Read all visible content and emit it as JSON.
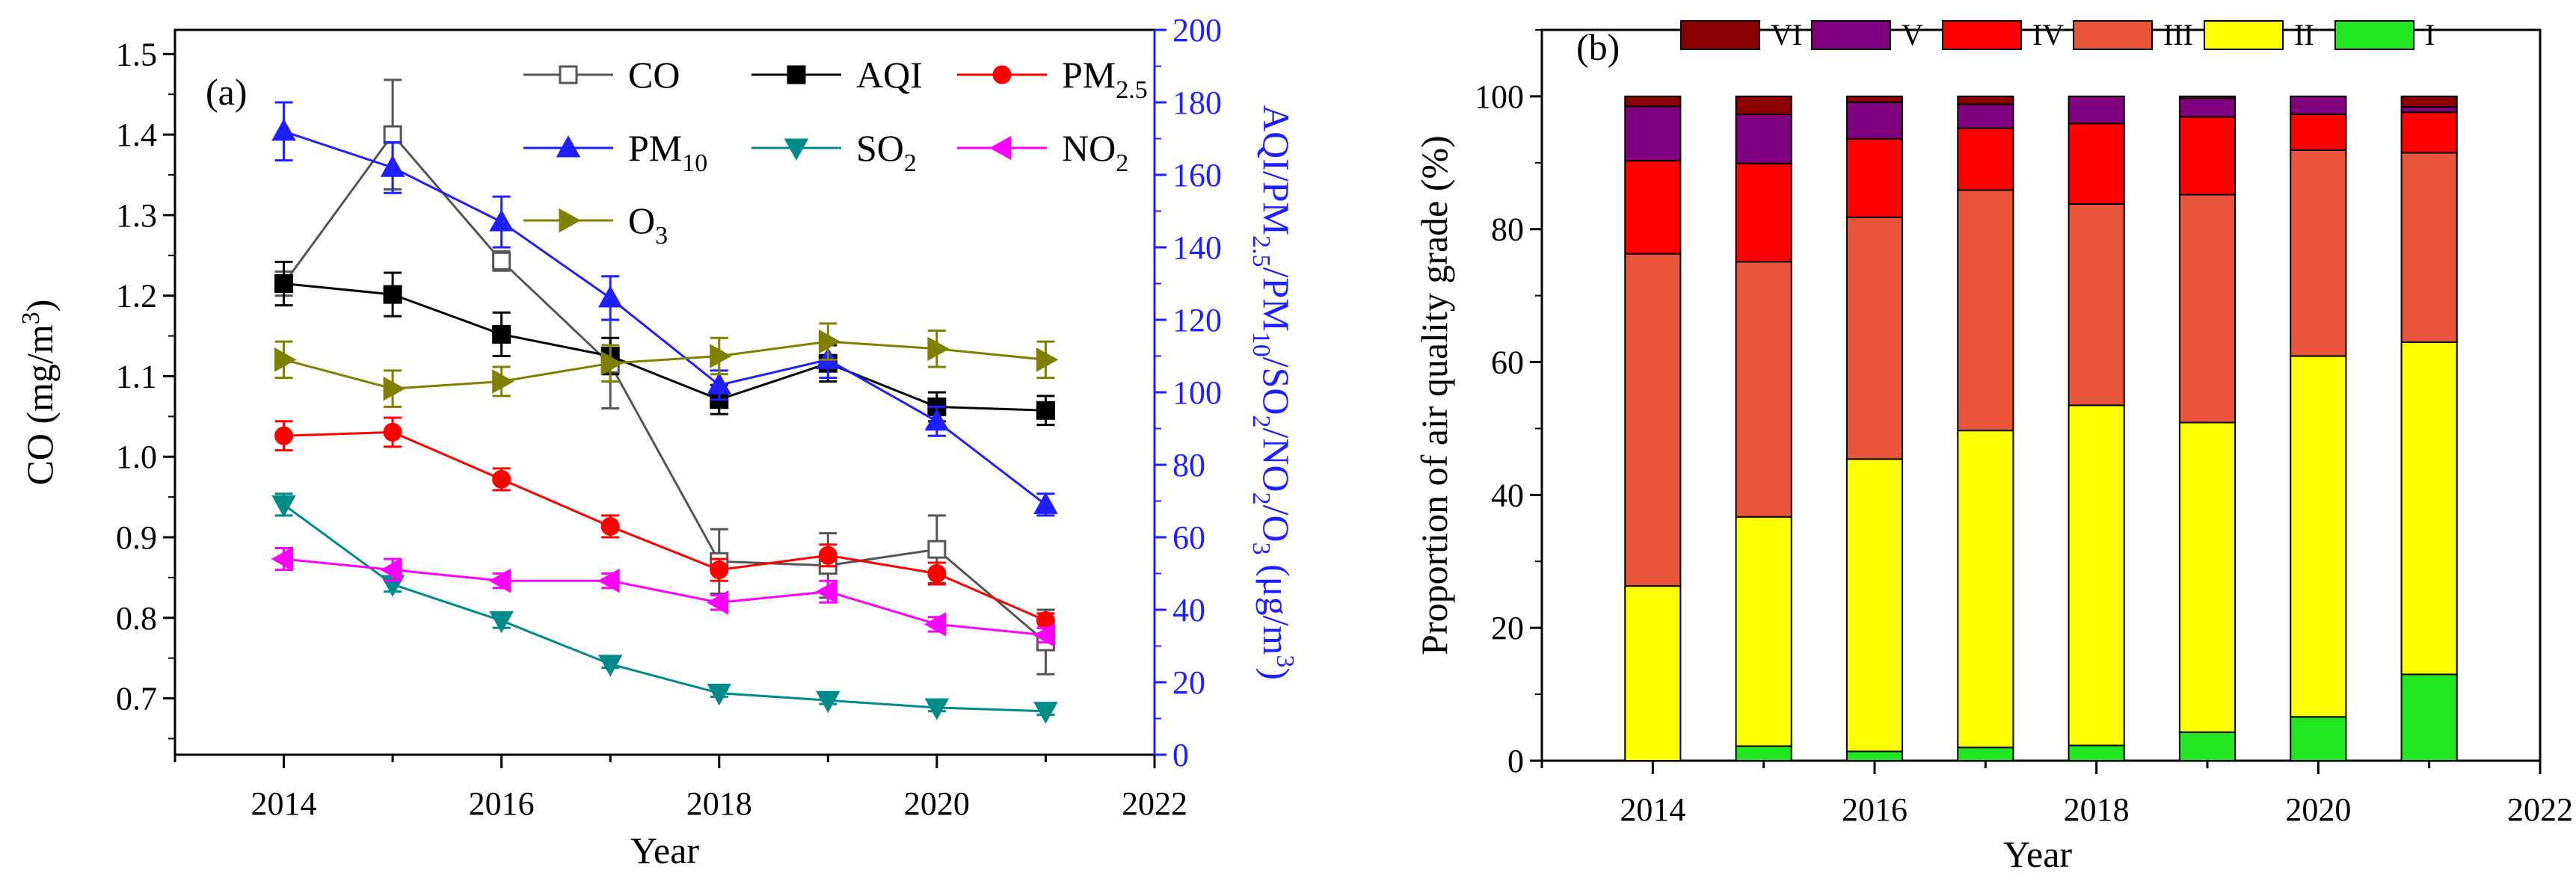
{
  "chart_data": [
    {
      "panel_label": "(a)",
      "type": "line",
      "xlabel": "Year",
      "x_ticks": [
        "2014",
        "2016",
        "2018",
        "2020",
        "2022"
      ],
      "xlim": [
        2013,
        2022
      ],
      "left_axis": {
        "label": "CO (mg/m3)",
        "label_main": "CO (mg/m",
        "label_sup": "3",
        "label_end": ")",
        "ylim": [
          0.63,
          1.53
        ],
        "ticks": [
          "0.7",
          "0.8",
          "0.9",
          "1.0",
          "1.1",
          "1.2",
          "1.3",
          "1.4",
          "1.5"
        ],
        "color": "#000000"
      },
      "right_axis": {
        "label": "AQI/PM2.5/PM10/SO2/NO2/O3 (μg/m3)",
        "label_parts": [
          {
            "t": "AQI/PM",
            "k": "n"
          },
          {
            "t": "2.5",
            "k": "sub"
          },
          {
            "t": "/PM",
            "k": "n"
          },
          {
            "t": "10",
            "k": "sub"
          },
          {
            "t": "/SO",
            "k": "n"
          },
          {
            "t": "2",
            "k": "sub"
          },
          {
            "t": "/NO",
            "k": "n"
          },
          {
            "t": "2",
            "k": "sub"
          },
          {
            "t": "/O",
            "k": "n"
          },
          {
            "t": "3",
            "k": "sub"
          },
          {
            "t": " (μg/m",
            "k": "n"
          },
          {
            "t": "3",
            "k": "sup"
          },
          {
            "t": ")",
            "k": "n"
          }
        ],
        "ylim": [
          0,
          200
        ],
        "ticks": [
          "0",
          "20",
          "40",
          "60",
          "80",
          "100",
          "120",
          "140",
          "160",
          "180",
          "200"
        ],
        "color": "#1f1fff"
      },
      "x": [
        2014,
        2015,
        2016,
        2017,
        2018,
        2019,
        2020,
        2021
      ],
      "series": [
        {
          "name": "CO",
          "name_main": "CO",
          "name_sub": "",
          "axis": "left",
          "color": "#555555",
          "marker": "square-open",
          "values": [
            1.215,
            1.4,
            1.243,
            1.115,
            0.87,
            0.865,
            0.885,
            0.77
          ],
          "errors": [
            0.015,
            0.068,
            0.012,
            0.055,
            0.04,
            0.04,
            0.042,
            0.04
          ]
        },
        {
          "name": "AQI",
          "name_main": "AQI",
          "name_sub": "",
          "axis": "right",
          "color": "#000000",
          "marker": "square",
          "values": [
            130,
            127,
            116,
            110,
            98,
            108,
            96,
            95
          ],
          "errors": [
            6,
            6,
            6,
            5,
            4,
            5,
            4,
            4
          ]
        },
        {
          "name": "PM2.5",
          "name_main": "PM",
          "name_sub": "2.5",
          "axis": "right",
          "color": "#ff0000",
          "marker": "circle",
          "values": [
            88,
            89,
            76,
            63,
            51,
            55,
            50,
            37
          ],
          "errors": [
            4,
            4,
            3,
            3,
            3,
            3,
            3,
            2
          ]
        },
        {
          "name": "PM10",
          "name_main": "PM",
          "name_sub": "10",
          "axis": "right",
          "color": "#1f1fff",
          "marker": "triangle-up",
          "values": [
            172,
            162,
            147,
            126,
            102,
            109,
            92,
            69
          ],
          "errors": [
            8,
            7,
            7,
            6,
            4,
            5,
            4,
            3
          ]
        },
        {
          "name": "SO2",
          "name_main": "SO",
          "name_sub": "2",
          "axis": "right",
          "color": "#008b8b",
          "marker": "triangle-down",
          "values": [
            69,
            47,
            37,
            25,
            17,
            15,
            13,
            12
          ],
          "errors": [
            3,
            2,
            2,
            1,
            1,
            1,
            1,
            1
          ]
        },
        {
          "name": "NO2",
          "name_main": "NO",
          "name_sub": "2",
          "axis": "right",
          "color": "#ff00ff",
          "marker": "triangle-left",
          "values": [
            54,
            51,
            48,
            48,
            42,
            45,
            36,
            33
          ],
          "errors": [
            3,
            3,
            2,
            2,
            2,
            3,
            2,
            2
          ]
        },
        {
          "name": "O3",
          "name_main": "O",
          "name_sub": "3",
          "axis": "right",
          "color": "#808000",
          "marker": "triangle-right",
          "values": [
            109,
            101,
            103,
            108,
            110,
            114,
            112,
            109
          ],
          "errors": [
            5,
            5,
            4,
            5,
            5,
            5,
            5,
            5
          ]
        }
      ]
    },
    {
      "panel_label": "(b)",
      "type": "bar",
      "stacked": true,
      "xlabel": "Year",
      "ylabel": "Proportion of air quality grade (%)",
      "x_ticks": [
        "2014",
        "2016",
        "2018",
        "2020",
        "2022"
      ],
      "xlim": [
        2013,
        2022
      ],
      "ylim": [
        0,
        110
      ],
      "y_ticks": [
        "0",
        "20",
        "40",
        "60",
        "80",
        "100"
      ],
      "categories": [
        2014,
        2015,
        2016,
        2017,
        2018,
        2019,
        2020,
        2021
      ],
      "series": [
        {
          "name": "I",
          "color": "#22e622",
          "values": [
            0.0,
            2.2,
            1.4,
            2.0,
            2.3,
            4.3,
            6.6,
            13.0
          ]
        },
        {
          "name": "II",
          "color": "#ffff00",
          "values": [
            26.3,
            34.5,
            44.0,
            47.7,
            51.2,
            46.6,
            54.3,
            50.0
          ]
        },
        {
          "name": "III",
          "color": "#e8553a",
          "values": [
            50.0,
            38.4,
            36.4,
            36.2,
            30.3,
            34.3,
            31.0,
            28.5
          ]
        },
        {
          "name": "IV",
          "color": "#ff0000",
          "values": [
            14.0,
            14.8,
            11.8,
            9.3,
            12.1,
            11.7,
            5.4,
            6.1
          ]
        },
        {
          "name": "V",
          "color": "#800080",
          "values": [
            8.2,
            7.4,
            5.5,
            3.6,
            4.1,
            2.8,
            2.7,
            0.8
          ]
        },
        {
          "name": "VI",
          "color": "#8b0000",
          "values": [
            1.5,
            2.7,
            0.9,
            1.2,
            0.0,
            0.3,
            0.0,
            1.6
          ]
        }
      ],
      "legend_order": [
        "VI",
        "V",
        "IV",
        "III",
        "II",
        "I"
      ]
    }
  ]
}
